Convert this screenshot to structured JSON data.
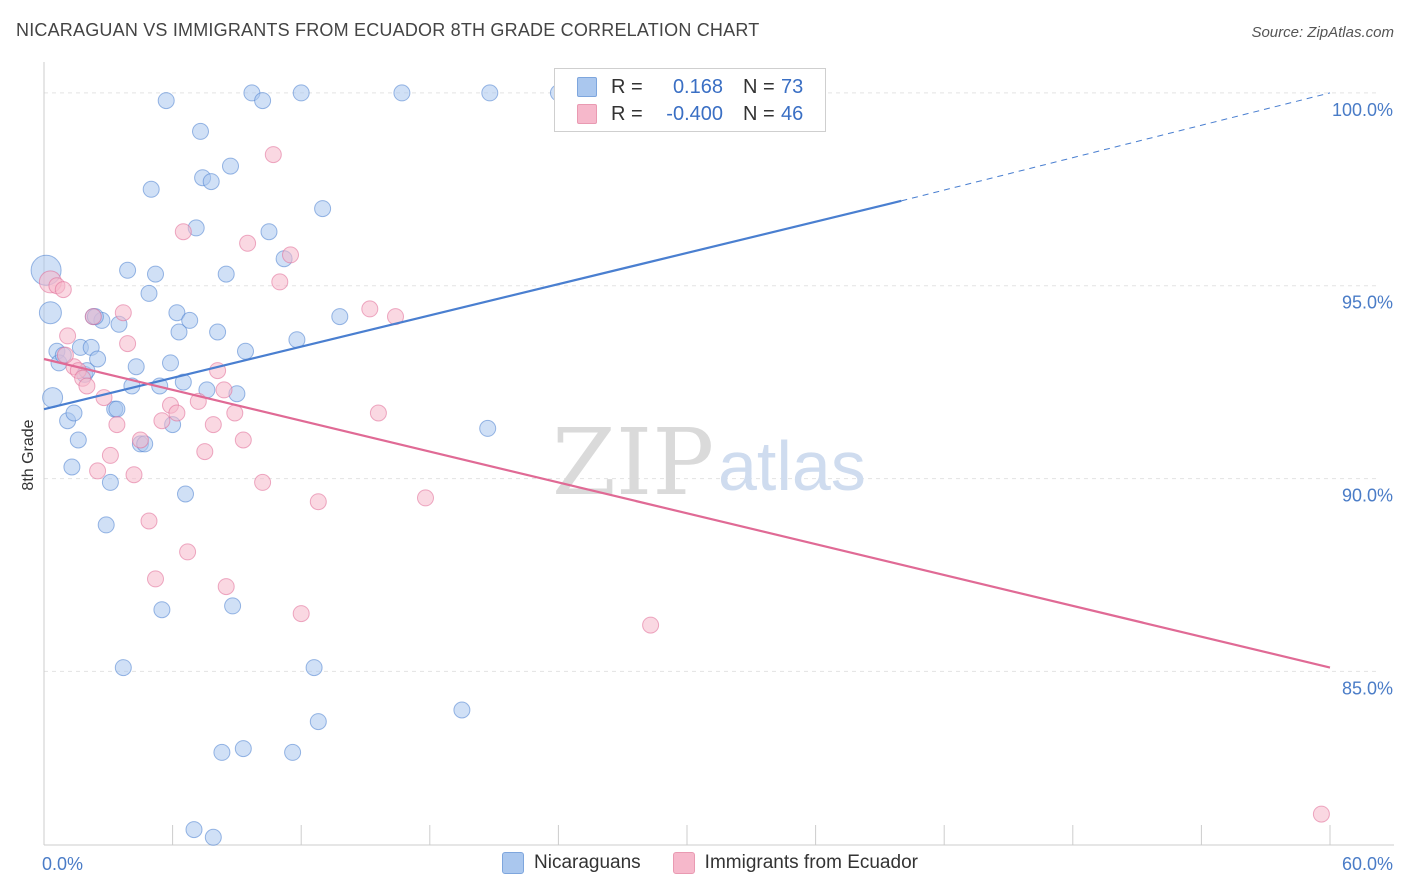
{
  "title": "NICARAGUAN VS IMMIGRANTS FROM ECUADOR 8TH GRADE CORRELATION CHART",
  "source": "Source: ZipAtlas.com",
  "watermark": {
    "zip": "ZIP",
    "atlas": "atlas"
  },
  "legend": {
    "rows": [
      {
        "r_label": "R =",
        "r_value": "0.168",
        "n_label": "N =",
        "n_value": "73",
        "color": "#aac7ee"
      },
      {
        "r_label": "R =",
        "r_value": "-0.400",
        "n_label": "N =",
        "n_value": "46",
        "color": "#f6b8cb"
      }
    ]
  },
  "bottom_legend": [
    {
      "label": "Nicaraguans",
      "color": "#aac7ee"
    },
    {
      "label": "Immigrants from Ecuador",
      "color": "#f6b8cb"
    }
  ],
  "chart_data": {
    "type": "scatter",
    "title": "NICARAGUAN VS IMMIGRANTS FROM ECUADOR 8TH GRADE CORRELATION CHART",
    "xlabel": "",
    "ylabel": "8th Grade",
    "xlim": [
      0,
      60
    ],
    "ylim": [
      80.5,
      100.8
    ],
    "x_tick_labels": [
      {
        "value": 0,
        "label": "0.0%"
      },
      {
        "value": 60,
        "label": "60.0%"
      }
    ],
    "y_tick_labels": [
      {
        "value": 85,
        "label": "85.0%"
      },
      {
        "value": 90,
        "label": "90.0%"
      },
      {
        "value": 95,
        "label": "95.0%"
      },
      {
        "value": 100,
        "label": "100.0%"
      }
    ],
    "grid": true,
    "legend_position": "top-center",
    "series": [
      {
        "name": "Nicaraguans",
        "color": "#4a7fd0",
        "fill": "#aac7ee",
        "trend": {
          "x": [
            0,
            40
          ],
          "y": [
            91.8,
            97.2
          ],
          "dashed_to": [
            60,
            100
          ]
        },
        "points": [
          [
            0.1,
            95.4,
            15
          ],
          [
            0.3,
            94.3,
            11
          ],
          [
            0.4,
            92.1,
            10
          ],
          [
            0.6,
            93.3,
            8
          ],
          [
            0.7,
            93.0,
            8
          ],
          [
            0.9,
            93.2,
            8
          ],
          [
            1.1,
            91.5,
            8
          ],
          [
            1.3,
            90.3,
            8
          ],
          [
            1.4,
            91.7,
            8
          ],
          [
            1.6,
            91.0,
            8
          ],
          [
            1.7,
            93.4,
            8
          ],
          [
            1.9,
            92.7,
            8
          ],
          [
            2.0,
            92.8,
            8
          ],
          [
            2.2,
            93.4,
            8
          ],
          [
            2.3,
            94.2,
            8
          ],
          [
            2.5,
            93.1,
            8
          ],
          [
            2.7,
            94.1,
            8
          ],
          [
            2.9,
            88.8,
            8
          ],
          [
            3.1,
            89.9,
            8
          ],
          [
            3.3,
            91.8,
            8
          ],
          [
            3.5,
            94.0,
            8
          ],
          [
            3.7,
            85.1,
            8
          ],
          [
            3.9,
            95.4,
            8
          ],
          [
            4.1,
            92.4,
            8
          ],
          [
            4.3,
            92.9,
            8
          ],
          [
            4.5,
            90.9,
            8
          ],
          [
            4.7,
            90.9,
            8
          ],
          [
            4.9,
            94.8,
            8
          ],
          [
            5.0,
            97.5,
            8
          ],
          [
            5.2,
            95.3,
            8
          ],
          [
            5.4,
            92.4,
            8
          ],
          [
            5.5,
            86.6,
            8
          ],
          [
            5.7,
            99.8,
            8
          ],
          [
            5.9,
            93.0,
            8
          ],
          [
            6.0,
            91.4,
            8
          ],
          [
            6.2,
            94.3,
            8
          ],
          [
            6.3,
            93.8,
            8
          ],
          [
            6.5,
            92.5,
            8
          ],
          [
            6.6,
            89.6,
            8
          ],
          [
            6.8,
            94.1,
            8
          ],
          [
            7.0,
            80.9,
            8
          ],
          [
            7.1,
            96.5,
            8
          ],
          [
            7.3,
            99.0,
            8
          ],
          [
            7.4,
            97.8,
            8
          ],
          [
            7.6,
            92.3,
            8
          ],
          [
            7.8,
            97.7,
            8
          ],
          [
            7.9,
            80.7,
            8
          ],
          [
            8.1,
            93.8,
            8
          ],
          [
            8.3,
            82.9,
            8
          ],
          [
            8.5,
            95.3,
            8
          ],
          [
            8.7,
            98.1,
            8
          ],
          [
            8.8,
            86.7,
            8
          ],
          [
            9.0,
            92.2,
            8
          ],
          [
            9.3,
            83.0,
            8
          ],
          [
            9.4,
            93.3,
            8
          ],
          [
            9.7,
            100.0,
            8
          ],
          [
            10.2,
            99.8,
            8
          ],
          [
            10.5,
            96.4,
            8
          ],
          [
            11.2,
            95.7,
            8
          ],
          [
            11.6,
            82.9,
            8
          ],
          [
            11.8,
            93.6,
            8
          ],
          [
            12.0,
            100.0,
            8
          ],
          [
            12.6,
            85.1,
            8
          ],
          [
            12.8,
            83.7,
            8
          ],
          [
            13.0,
            97.0,
            8
          ],
          [
            13.8,
            94.2,
            8
          ],
          [
            16.7,
            100.0,
            8
          ],
          [
            19.5,
            84.0,
            8
          ],
          [
            20.8,
            100.0,
            8
          ],
          [
            20.7,
            91.3,
            8
          ],
          [
            24.0,
            100.0,
            8
          ],
          [
            2.4,
            94.2,
            8
          ],
          [
            3.4,
            91.8,
            8
          ]
        ]
      },
      {
        "name": "Immigrants from Ecuador",
        "color": "#e06a95",
        "fill": "#f6b8cb",
        "trend": {
          "x": [
            0,
            60
          ],
          "y": [
            93.1,
            85.1
          ]
        },
        "points": [
          [
            0.3,
            95.1,
            11
          ],
          [
            0.6,
            95.0,
            8
          ],
          [
            0.9,
            94.9,
            8
          ],
          [
            1.1,
            93.7,
            8
          ],
          [
            1.4,
            92.9,
            8
          ],
          [
            1.6,
            92.8,
            8
          ],
          [
            1.8,
            92.6,
            8
          ],
          [
            2.0,
            92.4,
            8
          ],
          [
            2.3,
            94.2,
            8
          ],
          [
            2.5,
            90.2,
            8
          ],
          [
            2.8,
            92.1,
            8
          ],
          [
            3.1,
            90.6,
            8
          ],
          [
            3.4,
            91.4,
            8
          ],
          [
            3.7,
            94.3,
            8
          ],
          [
            3.9,
            93.5,
            8
          ],
          [
            4.2,
            90.1,
            8
          ],
          [
            4.5,
            91.0,
            8
          ],
          [
            4.9,
            88.9,
            8
          ],
          [
            5.2,
            87.4,
            8
          ],
          [
            5.5,
            91.5,
            8
          ],
          [
            5.9,
            91.9,
            8
          ],
          [
            6.2,
            91.7,
            8
          ],
          [
            6.5,
            96.4,
            8
          ],
          [
            6.7,
            88.1,
            8
          ],
          [
            7.2,
            92.0,
            8
          ],
          [
            7.5,
            90.7,
            8
          ],
          [
            7.9,
            91.4,
            8
          ],
          [
            8.1,
            92.8,
            8
          ],
          [
            8.4,
            92.3,
            8
          ],
          [
            8.5,
            87.2,
            8
          ],
          [
            8.9,
            91.7,
            8
          ],
          [
            9.3,
            91.0,
            8
          ],
          [
            9.5,
            96.1,
            8
          ],
          [
            10.2,
            89.9,
            8
          ],
          [
            10.7,
            98.4,
            8
          ],
          [
            11.0,
            95.1,
            8
          ],
          [
            11.5,
            95.8,
            8
          ],
          [
            12.0,
            86.5,
            8
          ],
          [
            12.8,
            89.4,
            8
          ],
          [
            15.2,
            94.4,
            8
          ],
          [
            15.6,
            91.7,
            8
          ],
          [
            16.4,
            94.2,
            8
          ],
          [
            17.8,
            89.5,
            8
          ],
          [
            28.3,
            86.2,
            8
          ],
          [
            59.6,
            81.3,
            8
          ],
          [
            1.0,
            93.2,
            8
          ]
        ]
      }
    ]
  }
}
